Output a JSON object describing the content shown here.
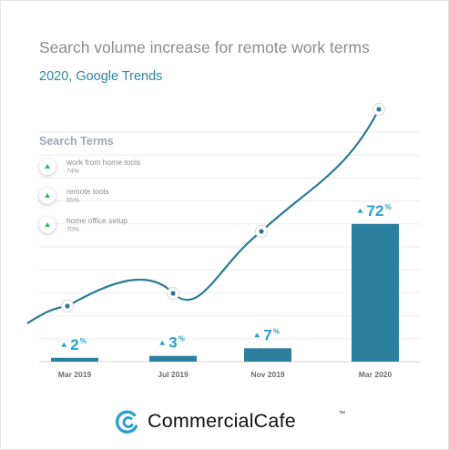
{
  "header": {
    "title": "Search volume increase for remote work terms",
    "subtitle": "2020, Google Trends"
  },
  "legend": {
    "title": "Search Terms",
    "items": [
      {
        "name": "work from home tools",
        "pct": "74%"
      },
      {
        "name": "remote tools",
        "pct": "65%"
      },
      {
        "name": "home office setup",
        "pct": "70%"
      }
    ]
  },
  "chart_data": {
    "type": "bar",
    "categories": [
      "Mar 2019",
      "Jul 2019",
      "Nov 2019",
      "Mar  2020"
    ],
    "values": [
      2,
      3,
      7,
      72
    ],
    "value_labels": [
      {
        "num": "2",
        "unit": "%"
      },
      {
        "num": "3",
        "unit": "%"
      },
      {
        "num": "7",
        "unit": "%"
      },
      {
        "num": "72",
        "unit": "%"
      }
    ],
    "ylim": [
      0,
      100
    ],
    "grid": true,
    "colors": {
      "bar": "#2d7f9f",
      "line": "#2a7a99",
      "label": "#2c9ecf",
      "grid": "#eeeeee",
      "arrow": "#27c24c"
    }
  },
  "brand": {
    "name": "CommercialCafe",
    "tm": "™",
    "icon": "commercialcafe-logo-icon"
  }
}
